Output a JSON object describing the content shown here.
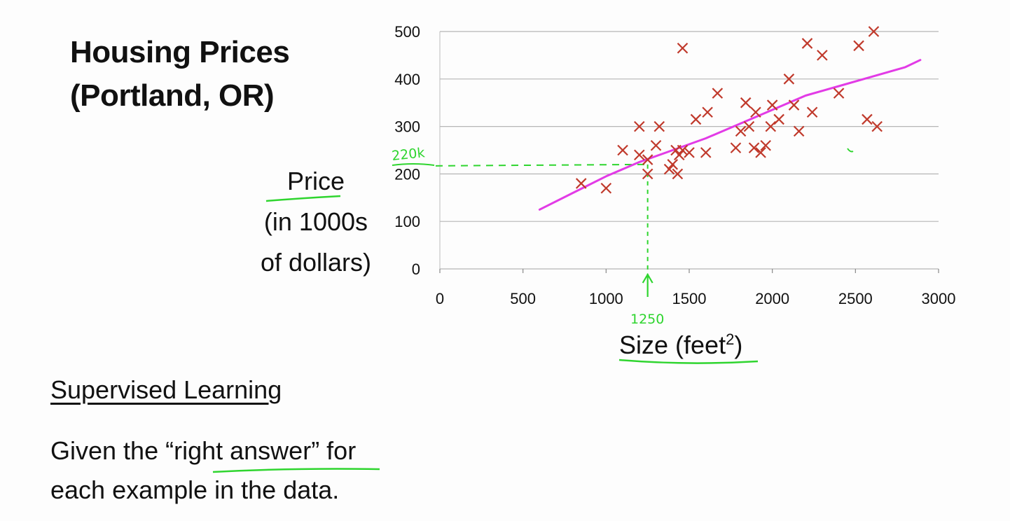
{
  "slide": {
    "title_line1": "Housing Prices",
    "title_line2": "(Portland, OR)",
    "ylabel_line1": "Price",
    "ylabel_line2": "(in 1000s",
    "ylabel_line3": "of dollars)",
    "xlabel_text": "Size (feet",
    "xlabel_sup": "2",
    "xlabel_close": ")",
    "section_title": "Supervised Learning",
    "desc_part1": "Given the “",
    "desc_highlight": "right answer",
    "desc_part2": "” for",
    "desc_line2": "each example in the data."
  },
  "colors": {
    "points": "#c0392b",
    "fit_line": "#e23be6",
    "annotation": "#2fd52f",
    "grid": "#b5b5b5"
  },
  "annotations": {
    "price_note": "220k",
    "size_note": "1250",
    "query_size": 1250,
    "query_price": 220
  },
  "chart_data": {
    "type": "scatter",
    "xlabel": "Size (feet²)",
    "ylabel": "Price (in 1000s of dollars)",
    "xlim": [
      0,
      3000
    ],
    "ylim": [
      0,
      500
    ],
    "x_ticks": [
      0,
      500,
      1000,
      1500,
      2000,
      2500,
      3000
    ],
    "y_ticks": [
      0,
      100,
      200,
      300,
      400,
      500
    ],
    "grid": "horizontal",
    "points": [
      [
        850,
        180
      ],
      [
        1000,
        170
      ],
      [
        1100,
        250
      ],
      [
        1200,
        300
      ],
      [
        1200,
        240
      ],
      [
        1250,
        230
      ],
      [
        1250,
        200
      ],
      [
        1300,
        260
      ],
      [
        1320,
        300
      ],
      [
        1380,
        210
      ],
      [
        1400,
        220
      ],
      [
        1420,
        250
      ],
      [
        1430,
        200
      ],
      [
        1440,
        240
      ],
      [
        1460,
        250
      ],
      [
        1460,
        465
      ],
      [
        1500,
        245
      ],
      [
        1540,
        315
      ],
      [
        1600,
        245
      ],
      [
        1610,
        330
      ],
      [
        1670,
        370
      ],
      [
        1780,
        255
      ],
      [
        1810,
        290
      ],
      [
        1840,
        350
      ],
      [
        1860,
        300
      ],
      [
        1890,
        255
      ],
      [
        1900,
        330
      ],
      [
        1930,
        245
      ],
      [
        1960,
        260
      ],
      [
        1990,
        300
      ],
      [
        2000,
        345
      ],
      [
        2040,
        315
      ],
      [
        2100,
        400
      ],
      [
        2130,
        345
      ],
      [
        2160,
        290
      ],
      [
        2210,
        475
      ],
      [
        2240,
        330
      ],
      [
        2300,
        450
      ],
      [
        2400,
        370
      ],
      [
        2520,
        470
      ],
      [
        2570,
        315
      ],
      [
        2610,
        500
      ],
      [
        2630,
        300
      ]
    ],
    "fit_curve": [
      [
        600,
        125
      ],
      [
        800,
        160
      ],
      [
        1000,
        195
      ],
      [
        1200,
        225
      ],
      [
        1400,
        250
      ],
      [
        1600,
        275
      ],
      [
        1800,
        305
      ],
      [
        2000,
        335
      ],
      [
        2200,
        365
      ],
      [
        2400,
        385
      ],
      [
        2600,
        405
      ],
      [
        2800,
        425
      ],
      [
        2890,
        440
      ]
    ]
  }
}
